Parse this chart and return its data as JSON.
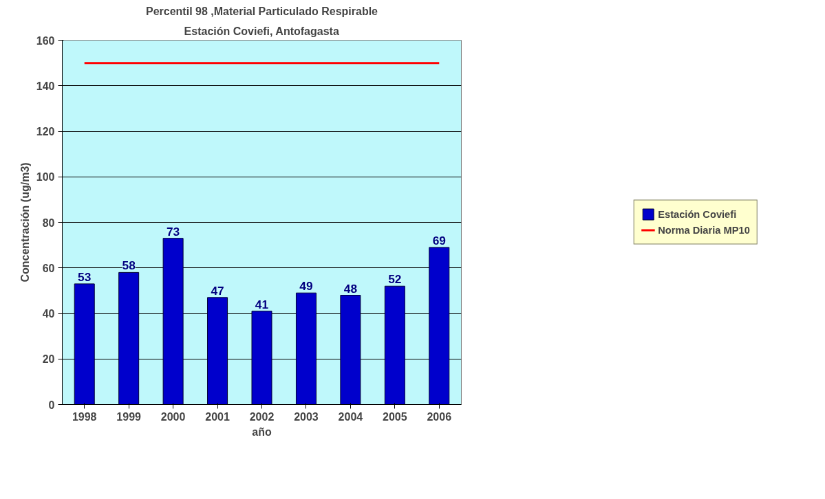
{
  "chart_data": {
    "type": "bar",
    "title": "Percentil 98 ,Material Particulado Respirable",
    "subtitle": "Estación Coviefi, Antofagasta",
    "xlabel": "año",
    "ylabel": "Concentración (ug/m3)",
    "categories": [
      "1998",
      "1999",
      "2000",
      "2001",
      "2002",
      "2003",
      "2004",
      "2005",
      "2006"
    ],
    "series": [
      {
        "name": "Estación Coviefi",
        "color": "#0000cc",
        "values": [
          53,
          58,
          73,
          47,
          41,
          49,
          48,
          52,
          69
        ],
        "data_labels": true
      },
      {
        "name": "Norma Diaria MP10",
        "type": "line",
        "color": "#ff0000",
        "values": [
          150,
          150,
          150,
          150,
          150,
          150,
          150,
          150,
          150
        ]
      }
    ],
    "ylim": [
      0,
      160
    ],
    "yticks": [
      0,
      20,
      40,
      60,
      80,
      100,
      120,
      140,
      160
    ],
    "grid": "y",
    "legend": "right"
  }
}
